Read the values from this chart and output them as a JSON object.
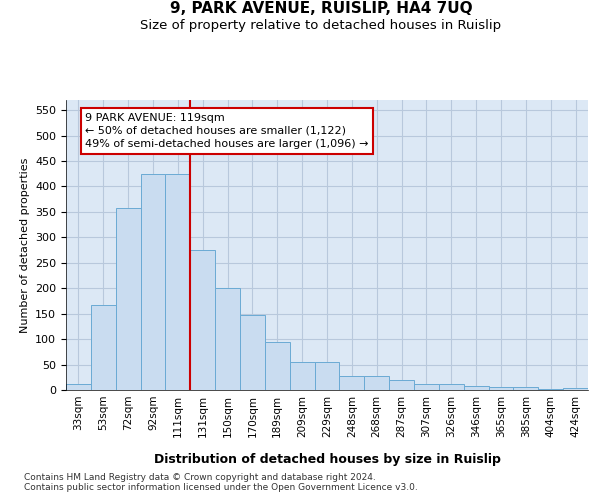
{
  "title": "9, PARK AVENUE, RUISLIP, HA4 7UQ",
  "subtitle": "Size of property relative to detached houses in Ruislip",
  "xlabel": "Distribution of detached houses by size in Ruislip",
  "ylabel": "Number of detached properties",
  "categories": [
    "33sqm",
    "53sqm",
    "72sqm",
    "92sqm",
    "111sqm",
    "131sqm",
    "150sqm",
    "170sqm",
    "189sqm",
    "209sqm",
    "229sqm",
    "248sqm",
    "268sqm",
    "287sqm",
    "307sqm",
    "326sqm",
    "346sqm",
    "365sqm",
    "385sqm",
    "404sqm",
    "424sqm"
  ],
  "values": [
    12,
    168,
    357,
    425,
    425,
    275,
    200,
    148,
    95,
    55,
    55,
    27,
    27,
    20,
    12,
    12,
    7,
    5,
    5,
    2,
    4
  ],
  "bar_color": "#c9dcf0",
  "bar_edge_color": "#6aaad4",
  "vline_index": 4,
  "vline_color": "#cc0000",
  "annotation_text": "9 PARK AVENUE: 119sqm\n← 50% of detached houses are smaller (1,122)\n49% of semi-detached houses are larger (1,096) →",
  "annotation_box_color": "#ffffff",
  "annotation_box_edge": "#cc0000",
  "footer": "Contains HM Land Registry data © Crown copyright and database right 2024.\nContains public sector information licensed under the Open Government Licence v3.0.",
  "ylim": [
    0,
    570
  ],
  "yticks": [
    0,
    50,
    100,
    150,
    200,
    250,
    300,
    350,
    400,
    450,
    500,
    550
  ],
  "title_fontsize": 11,
  "subtitle_fontsize": 9.5,
  "xlabel_fontsize": 9,
  "ylabel_fontsize": 8,
  "grid_color": "#b8c8dc",
  "background_color": "#dce8f5"
}
